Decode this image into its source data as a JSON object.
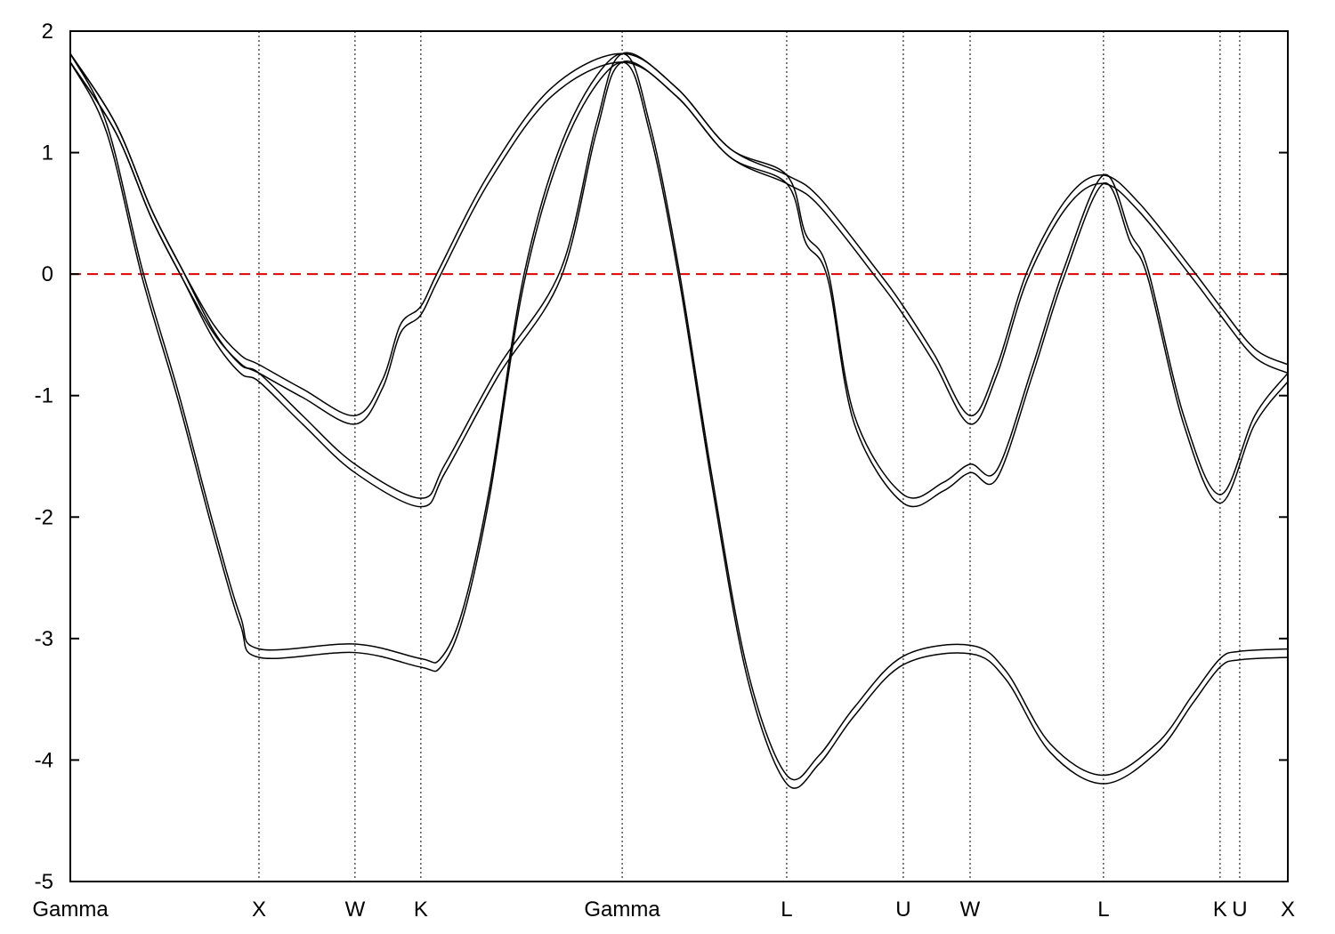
{
  "chart_data": {
    "type": "line",
    "title": "",
    "xlabel": "",
    "ylabel": "",
    "ylim": [
      -5,
      2
    ],
    "xlim": [
      0,
      6.453
    ],
    "yticks": [
      2,
      1,
      0,
      -1,
      -2,
      -3,
      -4,
      -5
    ],
    "ytick_labels": [
      "2",
      "1",
      "0",
      "-1",
      "-2",
      "-3",
      "-4",
      "-5"
    ],
    "xticks": [
      {
        "label": "Gamma",
        "x": 0
      },
      {
        "label": "X",
        "x": 1.0
      },
      {
        "label": "W",
        "x": 1.509
      },
      {
        "label": "K",
        "x": 1.858
      },
      {
        "label": "Gamma",
        "x": 2.925
      },
      {
        "label": "L",
        "x": 3.797
      },
      {
        "label": "U",
        "x": 4.415
      },
      {
        "label": "W",
        "x": 4.769
      },
      {
        "label": "L",
        "x": 5.476
      },
      {
        "label": "K",
        "x": 6.094
      },
      {
        "label": "U",
        "x": 6.198
      },
      {
        "label": "X",
        "x": 6.453
      }
    ],
    "grid": "vertical dotted lines at high-symmetry points",
    "reference_line": {
      "y": 0,
      "color": "#e00000",
      "style": "dashed"
    },
    "line_color": "#000000",
    "series": [
      {
        "points": [
          [
            0,
            1.78
          ],
          [
            0.193,
            1.2
          ],
          [
            0.382,
            0
          ],
          [
            0.571,
            -1.0
          ],
          [
            0.759,
            -2.1
          ],
          [
            0.901,
            -2.85
          ],
          [
            1.0,
            -3.12
          ],
          [
            1.509,
            -3.08
          ],
          [
            1.858,
            -3.2
          ],
          [
            1.962,
            -3.2
          ],
          [
            2.08,
            -2.8
          ],
          [
            2.222,
            -1.8
          ],
          [
            2.41,
            0
          ],
          [
            2.646,
            1.2
          ],
          [
            2.925,
            1.78
          ],
          [
            3.071,
            1.2
          ],
          [
            3.226,
            0
          ],
          [
            3.401,
            -1.7
          ],
          [
            3.59,
            -3.3
          ],
          [
            3.797,
            -4.16
          ],
          [
            3.967,
            -4.0
          ],
          [
            4.156,
            -3.6
          ],
          [
            4.415,
            -3.18
          ],
          [
            4.769,
            -3.09
          ],
          [
            4.958,
            -3.3
          ],
          [
            5.193,
            -3.9
          ],
          [
            5.476,
            -4.16
          ],
          [
            5.759,
            -3.9
          ],
          [
            5.948,
            -3.5
          ],
          [
            6.094,
            -3.2
          ],
          [
            6.198,
            -3.14
          ],
          [
            6.453,
            -3.12
          ]
        ]
      },
      {
        "points": [
          [
            0,
            1.78
          ],
          [
            0.241,
            1.2
          ],
          [
            0.429,
            0.5
          ],
          [
            0.594,
            0
          ],
          [
            0.759,
            -0.5
          ],
          [
            0.901,
            -0.78
          ],
          [
            1.0,
            -0.85
          ],
          [
            1.231,
            -1.2
          ],
          [
            1.509,
            -1.6
          ],
          [
            1.858,
            -1.88
          ],
          [
            1.986,
            -1.6
          ],
          [
            2.269,
            -0.8
          ],
          [
            2.599,
            0
          ],
          [
            2.788,
            1.2
          ],
          [
            2.925,
            1.78
          ],
          [
            3.212,
            1.5
          ],
          [
            3.495,
            1.0
          ],
          [
            3.797,
            0.78
          ],
          [
            3.896,
            0.3
          ],
          [
            4.014,
            0
          ],
          [
            4.156,
            -1.2
          ],
          [
            4.415,
            -1.85
          ],
          [
            4.627,
            -1.75
          ],
          [
            4.769,
            -1.6
          ],
          [
            4.91,
            -1.65
          ],
          [
            5.099,
            -0.8
          ],
          [
            5.264,
            0
          ],
          [
            5.476,
            0.78
          ],
          [
            5.618,
            0.3
          ],
          [
            5.712,
            0
          ],
          [
            5.901,
            -1.2
          ],
          [
            6.094,
            -1.85
          ],
          [
            6.278,
            -1.2
          ],
          [
            6.453,
            -0.85
          ]
        ]
      },
      {
        "points": [
          [
            0,
            1.78
          ],
          [
            0.241,
            1.2
          ],
          [
            0.429,
            0.5
          ],
          [
            0.594,
            0
          ],
          [
            0.759,
            -0.45
          ],
          [
            0.901,
            -0.7
          ],
          [
            1.0,
            -0.78
          ],
          [
            1.231,
            -0.98
          ],
          [
            1.509,
            -1.2
          ],
          [
            1.656,
            -0.9
          ],
          [
            1.75,
            -0.45
          ],
          [
            1.858,
            -0.3
          ],
          [
            1.953,
            0
          ],
          [
            2.222,
            0.8
          ],
          [
            2.552,
            1.5
          ],
          [
            2.925,
            1.78
          ],
          [
            3.212,
            1.5
          ],
          [
            3.495,
            1.0
          ],
          [
            3.797,
            0.78
          ],
          [
            3.967,
            0.6
          ],
          [
            4.274,
            0
          ],
          [
            4.415,
            -0.3
          ],
          [
            4.58,
            -0.7
          ],
          [
            4.769,
            -1.2
          ],
          [
            4.91,
            -0.8
          ],
          [
            5.075,
            0
          ],
          [
            5.288,
            0.6
          ],
          [
            5.476,
            0.78
          ],
          [
            5.665,
            0.55
          ],
          [
            5.948,
            0
          ],
          [
            6.094,
            -0.3
          ],
          [
            6.278,
            -0.65
          ],
          [
            6.453,
            -0.78
          ]
        ]
      }
    ]
  }
}
